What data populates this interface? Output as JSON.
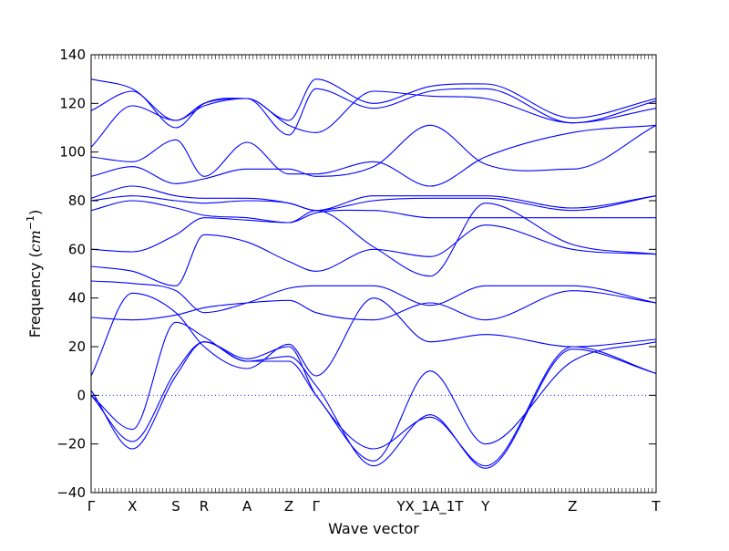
{
  "chart_data": {
    "type": "line",
    "title": "",
    "xlabel": "Wave vector",
    "ylabel": "Frequency (cm⁻¹)",
    "ylabel_main": "Frequency (",
    "ylabel_unit": "cm",
    "ylabel_exp": "−1",
    "ylabel_close": ")",
    "ylim": [
      -40,
      140
    ],
    "xlim": [
      0,
      1
    ],
    "yticks": [
      -40,
      -20,
      0,
      20,
      40,
      60,
      80,
      100,
      120,
      140
    ],
    "ytick_labels": [
      "−40",
      "−20",
      "0",
      "20",
      "40",
      "60",
      "80",
      "100",
      "120",
      "140"
    ],
    "high_symmetry_points": [
      {
        "label": "Γ",
        "x": 0.0
      },
      {
        "label": "X",
        "x": 0.073
      },
      {
        "label": "S",
        "x": 0.15
      },
      {
        "label": "R",
        "x": 0.2
      },
      {
        "label": "A",
        "x": 0.276
      },
      {
        "label": "Z",
        "x": 0.35
      },
      {
        "label": "Γ",
        "x": 0.398
      },
      {
        "label": "YX_1A_1T",
        "x": 0.6
      },
      {
        "label": "Y",
        "x": 0.698
      },
      {
        "label": "Z",
        "x": 0.852
      },
      {
        "label": "T",
        "x": 1.0
      }
    ],
    "zero_line": 0,
    "line_color": "#0000ff",
    "zero_line_color": "#0000ff",
    "legend": "none",
    "grid": false,
    "series": [
      {
        "x": [
          0,
          0.073,
          0.15,
          0.2,
          0.276,
          0.35,
          0.398,
          0.5,
          0.6,
          0.698,
          0.852,
          1.0
        ],
        "y": [
          130,
          126,
          113,
          120,
          122,
          113,
          130,
          120,
          127,
          128,
          114,
          122
        ]
      },
      {
        "x": [
          0,
          0.073,
          0.15,
          0.2,
          0.276,
          0.35,
          0.398,
          0.5,
          0.6,
          0.698,
          0.852,
          1.0
        ],
        "y": [
          117,
          125,
          110,
          120,
          122,
          107,
          126,
          118,
          125,
          126,
          112,
          121
        ]
      },
      {
        "x": [
          0,
          0.073,
          0.15,
          0.2,
          0.276,
          0.35,
          0.398,
          0.5,
          0.6,
          0.698,
          0.852,
          1.0
        ],
        "y": [
          102,
          119,
          113,
          119,
          122,
          111,
          108,
          125,
          123,
          122,
          112,
          118
        ]
      },
      {
        "x": [
          0,
          0.073,
          0.15,
          0.2,
          0.276,
          0.35,
          0.398,
          0.5,
          0.6,
          0.698,
          0.852,
          1.0
        ],
        "y": [
          98,
          96,
          105,
          90,
          104,
          91,
          91,
          96,
          86,
          98,
          108,
          111
        ]
      },
      {
        "x": [
          0,
          0.073,
          0.15,
          0.2,
          0.276,
          0.35,
          0.398,
          0.5,
          0.6,
          0.698,
          0.852,
          1.0
        ],
        "y": [
          90,
          94,
          87,
          89,
          93,
          93,
          90,
          94,
          111,
          95,
          93,
          111
        ]
      },
      {
        "x": [
          0,
          0.073,
          0.15,
          0.2,
          0.276,
          0.35,
          0.398,
          0.5,
          0.6,
          0.698,
          0.852,
          1.0
        ],
        "y": [
          81,
          86,
          82,
          81,
          81,
          79,
          76,
          82,
          82,
          82,
          77,
          82
        ]
      },
      {
        "x": [
          0,
          0.073,
          0.15,
          0.2,
          0.276,
          0.35,
          0.398,
          0.5,
          0.6,
          0.698,
          0.852,
          1.0
        ],
        "y": [
          80,
          82,
          80,
          79,
          80,
          79,
          76,
          80,
          81,
          81,
          76,
          82
        ]
      },
      {
        "x": [
          0,
          0.073,
          0.15,
          0.2,
          0.276,
          0.35,
          0.398,
          0.5,
          0.6,
          0.698,
          0.852,
          1.0
        ],
        "y": [
          76,
          80,
          77,
          74,
          73,
          71,
          75,
          76,
          73,
          73,
          73,
          73
        ]
      },
      {
        "x": [
          0,
          0.073,
          0.15,
          0.2,
          0.276,
          0.35,
          0.398,
          0.5,
          0.6,
          0.698,
          0.852,
          1.0
        ],
        "y": [
          60,
          59,
          66,
          73,
          72,
          71,
          76,
          61,
          49,
          79,
          62,
          58
        ]
      },
      {
        "x": [
          0,
          0.073,
          0.15,
          0.2,
          0.276,
          0.35,
          0.398,
          0.5,
          0.6,
          0.698,
          0.852,
          1.0
        ],
        "y": [
          53,
          51,
          45,
          66,
          63,
          55,
          51,
          60,
          57,
          70,
          60,
          58
        ]
      },
      {
        "x": [
          0,
          0.073,
          0.15,
          0.2,
          0.276,
          0.35,
          0.398,
          0.5,
          0.6,
          0.698,
          0.852,
          1.0
        ],
        "y": [
          47,
          46,
          43,
          34,
          38,
          44,
          45,
          45,
          37,
          45,
          45,
          38
        ]
      },
      {
        "x": [
          0,
          0.073,
          0.15,
          0.2,
          0.276,
          0.35,
          0.398,
          0.5,
          0.6,
          0.698,
          0.852,
          1.0
        ],
        "y": [
          32,
          31,
          33,
          36,
          38,
          39,
          34,
          31,
          38,
          31,
          43,
          38
        ]
      },
      {
        "x": [
          0,
          0.073,
          0.15,
          0.2,
          0.276,
          0.35,
          0.398,
          0.5,
          0.6,
          0.698,
          0.852,
          1.0
        ],
        "y": [
          8,
          42,
          34,
          20,
          11,
          21,
          8,
          40,
          22,
          25,
          20,
          23
        ]
      },
      {
        "x": [
          0,
          0.073,
          0.15,
          0.2,
          0.276,
          0.35,
          0.398,
          0.5,
          0.6,
          0.698,
          0.852,
          1.0
        ],
        "y": [
          0,
          -14,
          30,
          24,
          14,
          14,
          0,
          -27,
          10,
          -20,
          14,
          22
        ]
      },
      {
        "x": [
          0,
          0.073,
          0.15,
          0.2,
          0.276,
          0.35,
          0.398,
          0.5,
          0.6,
          0.698,
          0.852,
          1.0
        ],
        "y": [
          0,
          -19,
          10,
          22,
          15,
          20,
          0,
          -22,
          -9,
          -29,
          20,
          9
        ]
      },
      {
        "x": [
          0,
          0.073,
          0.15,
          0.2,
          0.276,
          0.35,
          0.398,
          0.5,
          0.6,
          0.698,
          0.852,
          1.0
        ],
        "y": [
          2,
          -22,
          8,
          22,
          14,
          16,
          4,
          -29,
          -8,
          -30,
          19,
          9
        ]
      }
    ]
  }
}
